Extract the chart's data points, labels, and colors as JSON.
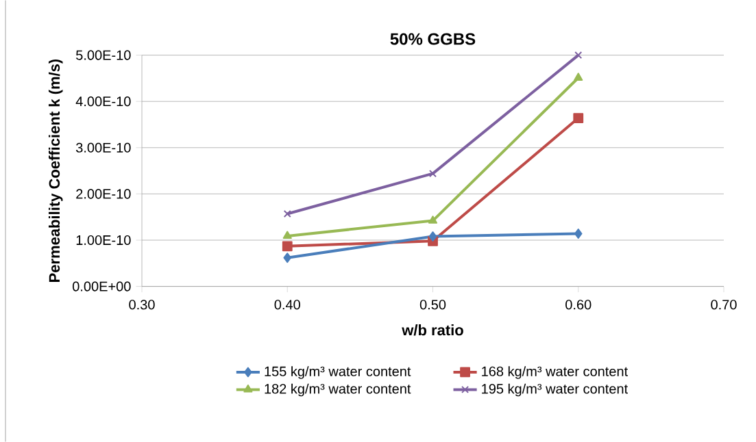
{
  "chart_data": {
    "type": "line",
    "title": "50% GGBS",
    "xlabel": "w/b ratio",
    "ylabel": "Permeability Coefficient k (m/s)",
    "x": [
      0.4,
      0.5,
      0.6
    ],
    "series": [
      {
        "name": "155 kg/m³ water content",
        "color": "#4a7ebb",
        "marker": "diamond",
        "values": [
          6.2e-11,
          1.08e-10,
          1.14e-10
        ]
      },
      {
        "name": "168 kg/m³ water content",
        "color": "#be4b48",
        "marker": "square",
        "values": [
          8.7e-11,
          9.8e-11,
          3.64e-10
        ]
      },
      {
        "name": "182 kg/m³ water content",
        "color": "#98b954",
        "marker": "triangle",
        "values": [
          1.09e-10,
          1.42e-10,
          4.51e-10
        ]
      },
      {
        "name": "195 kg/m³ water content",
        "color": "#7d60a0",
        "marker": "cross",
        "values": [
          1.57e-10,
          2.44e-10,
          5e-10
        ]
      }
    ],
    "xlim": [
      0.3,
      0.7
    ],
    "xticks": [
      {
        "value": 0.3,
        "label": "0.30"
      },
      {
        "value": 0.4,
        "label": "0.40"
      },
      {
        "value": 0.5,
        "label": "0.50"
      },
      {
        "value": 0.6,
        "label": "0.60"
      },
      {
        "value": 0.7,
        "label": "0.70"
      }
    ],
    "ylim": [
      0,
      5e-10
    ],
    "yticks": [
      {
        "value": 0,
        "label": "0.00E+00"
      },
      {
        "value": 1e-10,
        "label": "1.00E-10"
      },
      {
        "value": 2e-10,
        "label": "2.00E-10"
      },
      {
        "value": 3e-10,
        "label": "3.00E-10"
      },
      {
        "value": 4e-10,
        "label": "4.00E-10"
      },
      {
        "value": 5e-10,
        "label": "5.00E-10"
      }
    ],
    "grid": "y",
    "legend": "bottom",
    "line_style": "solid"
  }
}
